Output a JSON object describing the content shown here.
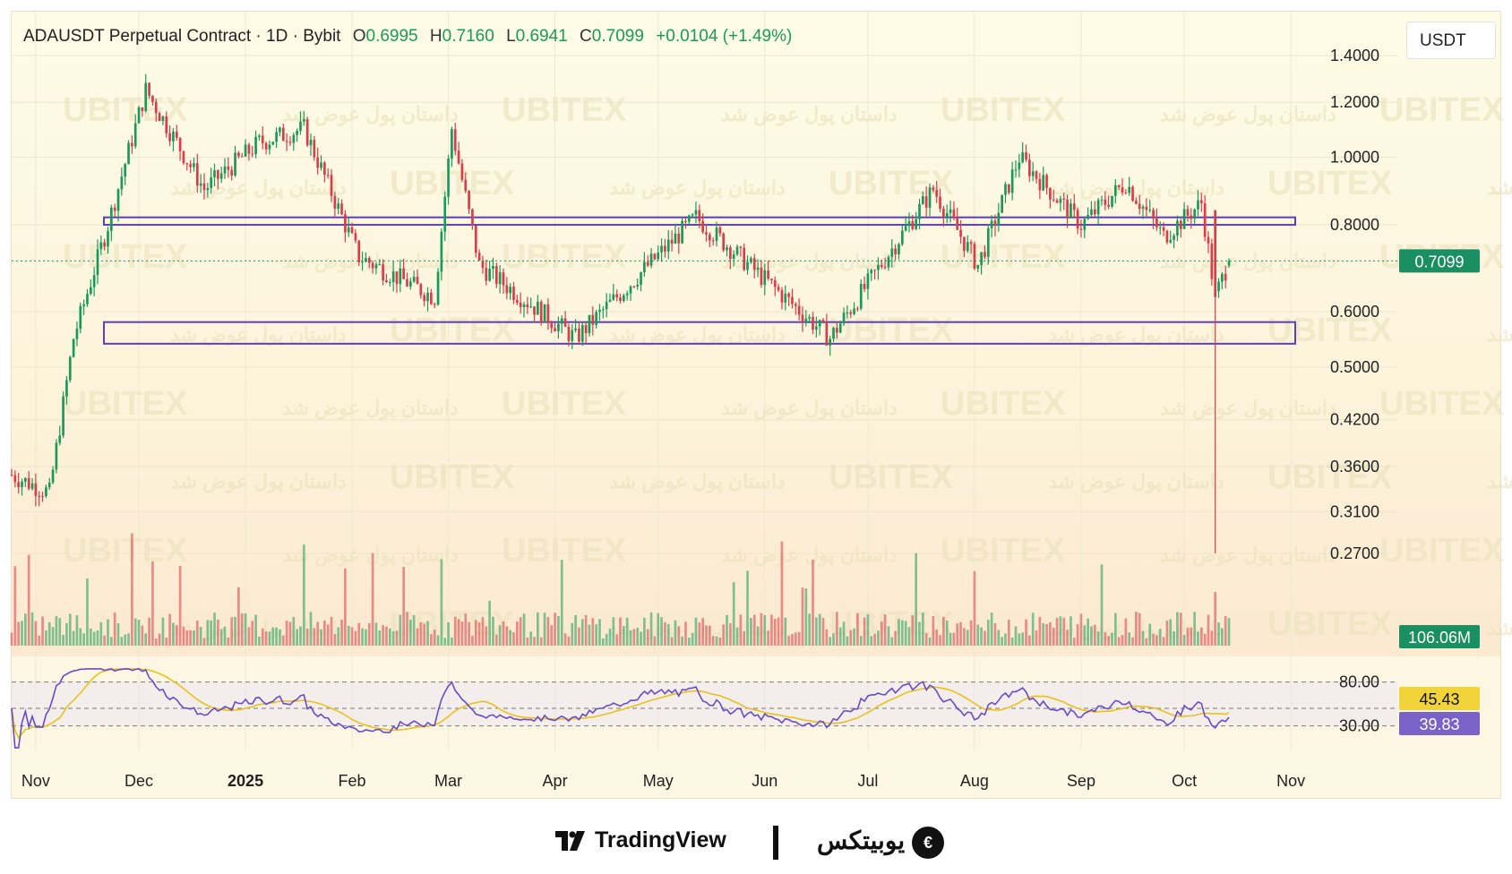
{
  "header": {
    "symbol": "ADAUSDT Perpetual Contract · 1D · Bybit",
    "o_label": "O",
    "o_value": "0.6995",
    "h_label": "H",
    "h_value": "0.7160",
    "l_label": "L",
    "l_value": "0.6941",
    "c_label": "C",
    "c_value": "0.7099",
    "change": "+0.0104 (+1.49%)"
  },
  "currency": "USDT",
  "last_price_badge": "0.7099",
  "volume_badge": "106.06M",
  "rsi_value_badge": "39.83",
  "rsi_ma_badge": "45.43",
  "watermark": {
    "latin": "UBITEX",
    "persian": "داستان پول عوض شد"
  },
  "colors": {
    "up": "#1a9a5a",
    "down": "#d93d49",
    "zone": "#5b3fbf",
    "rsi": "#6a4bc6",
    "rsi_ma": "#e8c21c",
    "badge_green": "#1a8f62",
    "badge_purple": "#7a62c8",
    "badge_yellow": "#f2d43a"
  },
  "footer": {
    "tradingview": "TradingView",
    "ubitex": "یوبیتکس",
    "tradingview_icon": "tradingview-logo-icon",
    "ubitex_icon": "ubitex-logo-icon"
  },
  "chart_data": {
    "type": "candlestick",
    "symbol": "ADAUSDT",
    "timeframe": "1D",
    "exchange": "Bybit",
    "y_scale": "log",
    "y_ticks": [
      "1.4000",
      "1.2000",
      "1.0000",
      "0.8000",
      "0.6000",
      "0.5000",
      "0.4200",
      "0.3600",
      "0.3100",
      "0.2700"
    ],
    "x_ticks": [
      "Nov",
      "Dec",
      "2025",
      "Feb",
      "Mar",
      "Apr",
      "May",
      "Jun",
      "Jul",
      "Aug",
      "Sep",
      "Oct",
      "Nov"
    ],
    "key_closes": [
      {
        "date": "2024-10-25",
        "close": 0.35
      },
      {
        "date": "2024-11-05",
        "close": 0.33
      },
      {
        "date": "2024-11-12",
        "close": 0.55
      },
      {
        "date": "2024-11-22",
        "close": 0.8
      },
      {
        "date": "2024-12-03",
        "close": 1.25
      },
      {
        "date": "2024-12-20",
        "close": 0.9
      },
      {
        "date": "2025-01-05",
        "close": 1.05
      },
      {
        "date": "2025-01-18",
        "close": 1.1
      },
      {
        "date": "2025-02-03",
        "close": 0.72
      },
      {
        "date": "2025-02-25",
        "close": 0.63
      },
      {
        "date": "2025-03-02",
        "close": 1.1
      },
      {
        "date": "2025-03-10",
        "close": 0.7
      },
      {
        "date": "2025-04-07",
        "close": 0.55
      },
      {
        "date": "2025-05-12",
        "close": 0.82
      },
      {
        "date": "2025-06-20",
        "close": 0.55
      },
      {
        "date": "2025-07-20",
        "close": 0.9
      },
      {
        "date": "2025-08-02",
        "close": 0.7
      },
      {
        "date": "2025-08-14",
        "close": 1.0
      },
      {
        "date": "2025-09-01",
        "close": 0.8
      },
      {
        "date": "2025-09-14",
        "close": 0.92
      },
      {
        "date": "2025-09-25",
        "close": 0.77
      },
      {
        "date": "2025-10-06",
        "close": 0.86
      },
      {
        "date": "2025-10-10",
        "close": 0.63
      },
      {
        "date": "2025-10-14",
        "close": 0.7099
      }
    ],
    "crash_wick_low": 0.27,
    "zones": [
      {
        "top": 0.82,
        "bottom": 0.8
      },
      {
        "top": 0.58,
        "bottom": 0.54
      }
    ],
    "volume_last": "106.06M",
    "rsi": {
      "upper_band": 80.0,
      "lower_band": 30.0,
      "value": 39.83,
      "ma": 45.43
    }
  }
}
